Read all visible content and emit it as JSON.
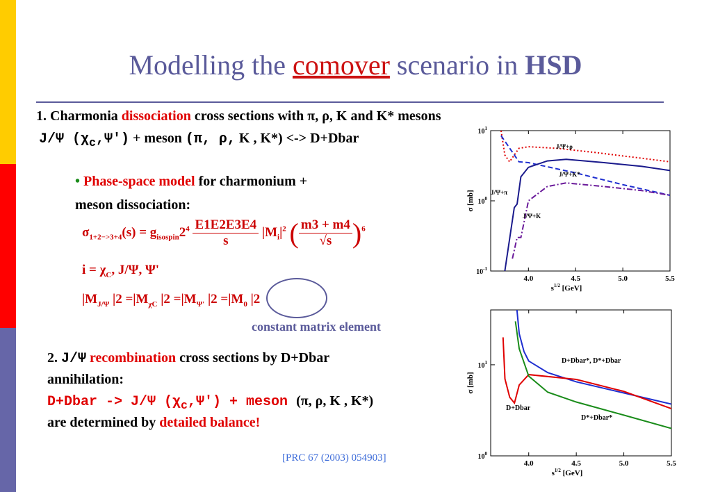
{
  "title": {
    "pre": "Modelling the ",
    "highlight": "comover",
    "mid": " scenario in ",
    "bold": "HSD"
  },
  "s1": {
    "l1_a": "1. Charmonia ",
    "l1_red": "dissociation",
    "l1_b": " cross sections with π, ρ, K and K* mesons",
    "l2_a": "J/Ψ (χ",
    "l2_sub": "c",
    "l2_b": ",Ψ')",
    "l2_c": " + meson ",
    "l2_d": "(π, ρ,",
    "l2_e": " K , K*) <-> D+Dbar",
    "bullet": "•",
    "b_red": "Phase-space model",
    "b_rest": " for charmonium +",
    "b_line2": "meson dissociation:"
  },
  "eq": {
    "e1_lhs": "σ",
    "e1_lhs_sub": "1+2−>3+4",
    "e1_s": "(s) = g",
    "e1_g_sub": "isospin",
    "e1_2": "2",
    "e1_2_sup": "4",
    "e1_num": "E1E2E3E4",
    "e1_den": "s",
    "e1_m": "|M",
    "e1_m_sub": "i",
    "e1_m2": "|",
    "e1_m2_sup": "2",
    "e1_pnum": "m3 + m4",
    "e1_pden": "√s",
    "e1_pow": "6",
    "e2": "i = χ",
    "e2_sub": "C",
    "e2_rest": ", J/Ψ, Ψ'",
    "e3": "|M",
    "e3_s1": "J/Ψ",
    "e3_a": " |2 =|M",
    "e3_s2": "χC",
    "e3_b": " |2 =|M",
    "e3_s3": "Ψ'",
    "e3_c": " |2 =|M",
    "e3_s4": "0",
    "e3_d": " |2"
  },
  "cme": "constant matrix element",
  "s2": {
    "l1_a": "2. ",
    "l1_mono": "J/Ψ",
    "l1_red": " recombination",
    "l1_b": " cross sections by D+Dbar",
    "l2": "annihilation:",
    "l3_red": "D+Dbar -> J/Ψ (χ",
    "l3_sub": "c",
    "l3_red2": ",Ψ') + meson ",
    "l3_black": "(π, ρ, K , K*)",
    "l4_a": "are determined by ",
    "l4_red": "detailed balance!"
  },
  "ref": "[PRC 67 (2003) 054903]",
  "chart_data": [
    {
      "type": "line",
      "title": "",
      "xlabel": "s1/2 [GeV]",
      "ylabel": "σ [mb]",
      "xlim": [
        3.6,
        5.5
      ],
      "yscale": "log",
      "ylim": [
        0.1,
        10
      ],
      "xticks": [
        "4.0",
        "4.5",
        "5.0",
        "5.5"
      ],
      "yticks": [
        "10-1",
        "100",
        "101"
      ],
      "series": [
        {
          "name": "J/Ψ+ρ",
          "color": "#e00000",
          "style": "dotted",
          "x": [
            3.71,
            3.75,
            3.8,
            3.9,
            4.0,
            4.3,
            4.7,
            5.1,
            5.5
          ],
          "y": [
            10,
            4.5,
            3.6,
            5.6,
            5.9,
            5.6,
            4.9,
            4.2,
            3.6
          ]
        },
        {
          "name": "J/Ψ+K*",
          "color": "#1f2fd0",
          "style": "dashed",
          "x": [
            3.71,
            3.9,
            4.0,
            4.5,
            5.0,
            5.5
          ],
          "y": [
            8.5,
            3.6,
            3.5,
            2.5,
            1.7,
            1.2
          ]
        },
        {
          "name": "J/Ψ+π",
          "color": "#1a1a8c",
          "style": "solid",
          "x": [
            3.75,
            3.85,
            3.88,
            3.92,
            4.0,
            4.2,
            4.4,
            4.8,
            5.2,
            5.5
          ],
          "y": [
            0.1,
            0.8,
            0.9,
            2.2,
            3.0,
            3.7,
            3.9,
            3.5,
            3.1,
            2.7
          ]
        },
        {
          "name": "J/Ψ+K",
          "color": "#6a1a9a",
          "style": "dashdot",
          "x": [
            3.83,
            3.88,
            3.92,
            4.0,
            4.2,
            4.4,
            4.8,
            5.2,
            5.5
          ],
          "y": [
            0.15,
            0.3,
            0.3,
            1.0,
            1.6,
            1.8,
            1.6,
            1.4,
            1.2
          ]
        }
      ]
    },
    {
      "type": "line",
      "title": "",
      "xlabel": "s1/2 [GeV]",
      "ylabel": "σ [mb]",
      "xlim": [
        3.6,
        5.5
      ],
      "yscale": "log",
      "ylim": [
        1,
        40
      ],
      "xticks": [
        "4.0",
        "4.5",
        "5.0",
        "5.5"
      ],
      "yticks": [
        "100",
        "101"
      ],
      "series": [
        {
          "name": "D+Dbar*, D*+Dbar",
          "color": "#1f2fd0",
          "x": [
            3.86,
            3.9,
            3.95,
            4.0,
            4.2,
            4.5,
            5.0,
            5.5
          ],
          "y": [
            60,
            22,
            14,
            11,
            8.2,
            6.5,
            4.9,
            3.7
          ]
        },
        {
          "name": "D+Dbar",
          "color": "#e00000",
          "x": [
            3.73,
            3.75,
            3.8,
            3.85,
            3.9,
            4.0,
            4.5,
            5.0,
            5.5
          ],
          "y": [
            20,
            7,
            4.4,
            3.8,
            6,
            7.8,
            6.9,
            5.1,
            3.3
          ]
        },
        {
          "name": "D*+Dbar*",
          "color": "#1a8c1a",
          "x": [
            3.86,
            3.9,
            4.0,
            4.2,
            4.5,
            5.0,
            5.5
          ],
          "y": [
            30,
            15,
            7.5,
            5.0,
            3.9,
            2.8,
            2.0
          ]
        }
      ]
    }
  ]
}
